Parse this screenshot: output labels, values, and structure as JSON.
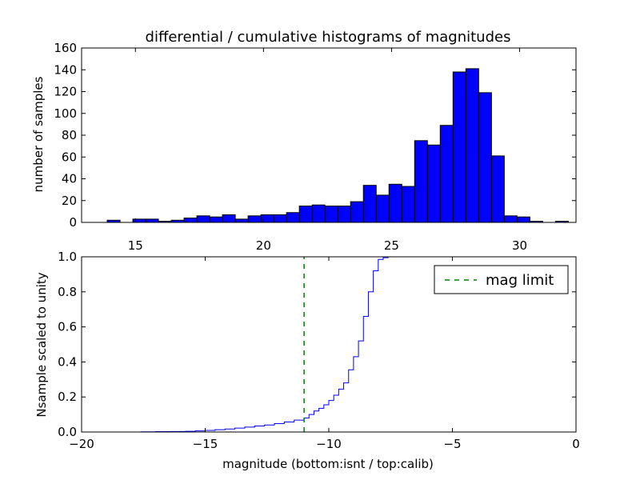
{
  "figure_title": "differential / cumulative histograms of magnitudes",
  "colors": {
    "bar_fill": "#0000ff",
    "bar_edge": "#000000",
    "cdf_line": "#0000ff",
    "mag_limit_line": "#008000",
    "axes_edge": "#000000",
    "background": "#ffffff"
  },
  "chart_data": [
    {
      "type": "bar",
      "subtype": "histogram",
      "title": "differential / cumulative histograms of magnitudes",
      "xlabel": "",
      "ylabel": "number of samples",
      "xlim": [
        12.9,
        32.2
      ],
      "ylim": [
        0,
        160
      ],
      "xticks": [
        15,
        20,
        25,
        30
      ],
      "yticks": [
        0,
        20,
        40,
        60,
        80,
        100,
        120,
        140,
        160
      ],
      "xtick_position": "below",
      "grid": false,
      "bin_edges": [
        12.9,
        13.4,
        13.9,
        14.4,
        14.9,
        15.4,
        15.9,
        16.4,
        16.9,
        17.4,
        17.9,
        18.4,
        18.9,
        19.4,
        19.9,
        20.4,
        20.9,
        21.4,
        21.9,
        22.4,
        22.9,
        23.4,
        23.9,
        24.4,
        24.9,
        25.4,
        25.9,
        26.4,
        26.9,
        27.4,
        27.9,
        28.4,
        28.9,
        29.4,
        29.9,
        30.4,
        30.9,
        31.4,
        31.9,
        32.2
      ],
      "counts": [
        0,
        0,
        2,
        0,
        3,
        3,
        1,
        2,
        4,
        6,
        5,
        7,
        3,
        6,
        7,
        7,
        9,
        15,
        16,
        15,
        15,
        19,
        34,
        25,
        35,
        33,
        75,
        71,
        89,
        138,
        141,
        119,
        61,
        6,
        5,
        1,
        0,
        1,
        0
      ]
    },
    {
      "type": "line",
      "subtype": "step",
      "title": "",
      "xlabel": "magnitude (bottom:isnt / top:calib)",
      "ylabel": "Nsample scaled to unity",
      "xlim": [
        -20,
        0
      ],
      "ylim": [
        0,
        1.0
      ],
      "xticks": [
        -20,
        -15,
        -10,
        -5,
        0
      ],
      "yticks": [
        0.0,
        0.2,
        0.4,
        0.6,
        0.8,
        1.0
      ],
      "grid": false,
      "legend_position": "top-right",
      "series": [
        {
          "name": "",
          "style": "solid",
          "x": [
            -20,
            -19.4,
            -18.8,
            -18.2,
            -17.6,
            -17.0,
            -16.4,
            -15.8,
            -15.4,
            -15.0,
            -14.6,
            -14.2,
            -13.8,
            -13.4,
            -13.0,
            -12.6,
            -12.2,
            -11.8,
            -11.4,
            -11.0,
            -10.8,
            -10.6,
            -10.4,
            -10.2,
            -10.0,
            -9.8,
            -9.6,
            -9.4,
            -9.2,
            -9.0,
            -8.8,
            -8.6,
            -8.4,
            -8.2,
            -8.0,
            -7.8,
            -7.6,
            -7.4,
            -7.2,
            -0.05,
            0
          ],
          "y": [
            0,
            0,
            0,
            0,
            0.001,
            0.002,
            0.003,
            0.004,
            0.006,
            0.009,
            0.013,
            0.017,
            0.022,
            0.028,
            0.034,
            0.04,
            0.048,
            0.057,
            0.068,
            0.08,
            0.1,
            0.12,
            0.135,
            0.155,
            0.18,
            0.21,
            0.245,
            0.28,
            0.355,
            0.43,
            0.52,
            0.66,
            0.8,
            0.92,
            0.985,
            0.995,
            1.0,
            1.0,
            1.0,
            1.0,
            0
          ]
        },
        {
          "name": "mag limit",
          "style": "dashed",
          "x": [
            -11.0,
            -11.0
          ],
          "y": [
            0,
            1.0
          ]
        }
      ]
    }
  ]
}
